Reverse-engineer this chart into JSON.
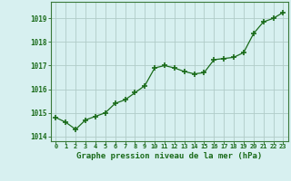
{
  "x": [
    0,
    1,
    2,
    3,
    4,
    5,
    6,
    7,
    8,
    9,
    10,
    11,
    12,
    13,
    14,
    15,
    16,
    17,
    18,
    19,
    20,
    21,
    22,
    23
  ],
  "y": [
    1014.8,
    1014.6,
    1014.3,
    1014.7,
    1014.85,
    1015.0,
    1015.4,
    1015.55,
    1015.85,
    1016.15,
    1016.9,
    1017.0,
    1016.9,
    1016.75,
    1016.65,
    1016.7,
    1017.25,
    1017.3,
    1017.35,
    1017.55,
    1018.35,
    1018.85,
    1019.0,
    1019.25
  ],
  "line_color": "#1a6b1a",
  "marker": "+",
  "marker_size": 4,
  "marker_lw": 1.2,
  "bg_color": "#d7f0f0",
  "grid_color": "#b0ccc8",
  "xlabel": "Graphe pression niveau de la mer (hPa)",
  "xlabel_color": "#1a6b1a",
  "tick_color": "#1a6b1a",
  "spine_color": "#3a7a3a",
  "ylim": [
    1013.8,
    1019.7
  ],
  "yticks": [
    1014,
    1015,
    1016,
    1017,
    1018,
    1019
  ],
  "xticks": [
    0,
    1,
    2,
    3,
    4,
    5,
    6,
    7,
    8,
    9,
    10,
    11,
    12,
    13,
    14,
    15,
    16,
    17,
    18,
    19,
    20,
    21,
    22,
    23
  ],
  "xtick_labels": [
    "0",
    "1",
    "2",
    "3",
    "4",
    "5",
    "6",
    "7",
    "8",
    "9",
    "10",
    "11",
    "12",
    "13",
    "14",
    "15",
    "16",
    "17",
    "18",
    "19",
    "20",
    "21",
    "22",
    "23"
  ]
}
